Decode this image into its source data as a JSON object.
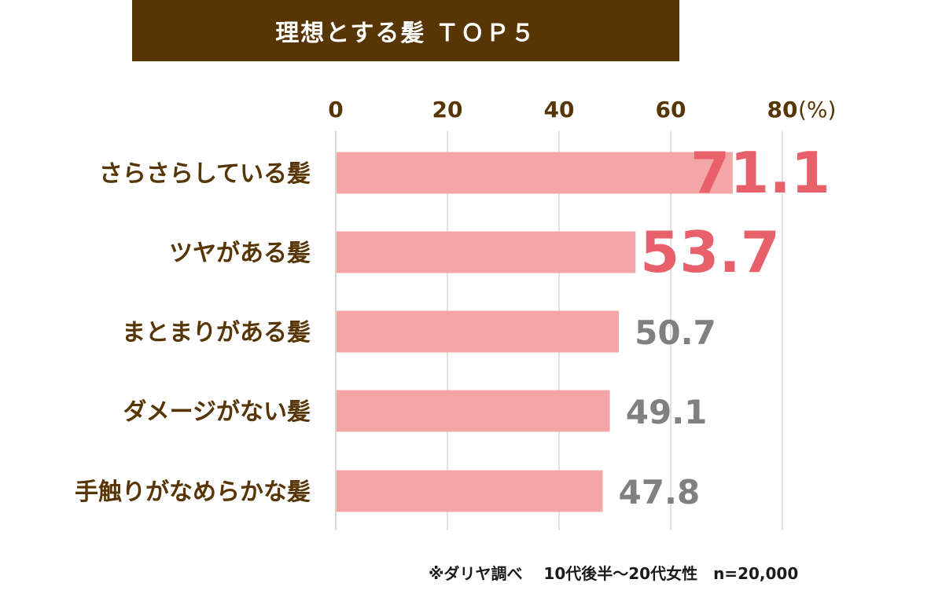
{
  "title": "理想とする髪 ＴＯＰ５",
  "footnote": "※ダリヤ調べ　 10代後半～20代女性　n=20,000",
  "colors": {
    "title_bg": "#573504",
    "bar": "#F4A5A6",
    "category_text": "#573504",
    "highlight_value": "#E8606A",
    "normal_value": "#808080",
    "grid": "#D9D9D9"
  },
  "chart_data": {
    "type": "bar",
    "orientation": "horizontal",
    "categories": [
      "さらさらしている髪",
      "ツヤがある髪",
      "まとまりがある髪",
      "ダメージがない髪",
      "手触りがなめらかな髪"
    ],
    "values": [
      71.1,
      53.7,
      50.7,
      49.1,
      47.8
    ],
    "value_labels": [
      "71.1",
      "53.7",
      "50.7",
      "49.1",
      "47.8"
    ],
    "highlighted": [
      true,
      true,
      false,
      false,
      false
    ],
    "xlim": [
      0,
      80
    ],
    "x_ticks": [
      0,
      20,
      40,
      60,
      80
    ],
    "x_tick_labels": [
      "0",
      "20",
      "40",
      "60",
      "80"
    ],
    "x_unit": "(%)",
    "x_axis_position": "top",
    "grid": true
  }
}
